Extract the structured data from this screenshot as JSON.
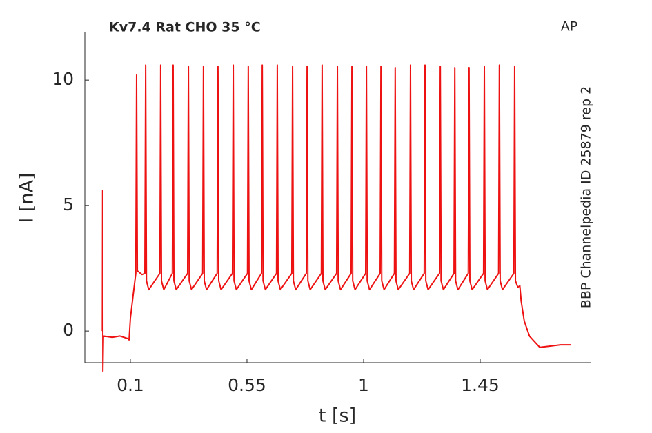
{
  "chart_data": {
    "type": "line",
    "title": "Kv7.4  Rat  CHO  35 °C",
    "annotation": "AP",
    "side_note": "BBP Channelpedia ID 25879 rep 2",
    "xlabel": "t [s]",
    "ylabel": "I [nA]",
    "xlim": [
      -0.0756,
      1.876
    ],
    "ylim": [
      -1.26,
      11.9
    ],
    "xticks": [
      0.1,
      0.55,
      1,
      1.45
    ],
    "yticks": [
      0,
      5,
      10
    ],
    "series": [
      {
        "color": "#ee1111",
        "x": [
          -0.008,
          -0.007,
          -0.006,
          -0.004,
          0.03,
          0.06,
          0.09,
          0.095,
          0.1,
          0.115,
          0.121,
          0.124,
          0.127,
          0.145,
          0.156,
          0.159,
          0.162,
          0.171,
          0.214,
          0.217,
          0.22,
          0.229,
          0.262,
          0.265,
          0.268,
          0.277,
          0.321,
          0.324,
          0.327,
          0.336,
          0.379,
          0.382,
          0.385,
          0.394,
          0.435,
          0.438,
          0.441,
          0.45,
          0.494,
          0.497,
          0.5,
          0.509,
          0.552,
          0.555,
          0.558,
          0.567,
          0.606,
          0.609,
          0.612,
          0.621,
          0.664,
          0.667,
          0.67,
          0.679,
          0.723,
          0.726,
          0.729,
          0.738,
          0.779,
          0.782,
          0.785,
          0.794,
          0.837,
          0.84,
          0.843,
          0.852,
          0.896,
          0.899,
          0.902,
          0.911,
          0.952,
          0.955,
          0.958,
          0.967,
          1.008,
          1.011,
          1.014,
          1.023,
          1.064,
          1.067,
          1.07,
          1.079,
          1.119,
          1.122,
          1.125,
          1.134,
          1.178,
          1.181,
          1.184,
          1.193,
          1.234,
          1.237,
          1.24,
          1.249,
          1.293,
          1.296,
          1.299,
          1.308,
          1.349,
          1.352,
          1.355,
          1.364,
          1.404,
          1.407,
          1.41,
          1.419,
          1.463,
          1.466,
          1.469,
          1.478,
          1.521,
          1.524,
          1.527,
          1.536,
          1.58,
          1.583,
          1.586,
          1.595,
          1.603,
          1.608,
          1.62,
          1.64,
          1.68,
          1.72,
          1.76,
          1.8
        ],
        "values": [
          0,
          5.6,
          -1.6,
          -0.2,
          -0.25,
          -0.2,
          -0.3,
          -0.35,
          0.5,
          1.8,
          2.3,
          10.2,
          2.4,
          2.25,
          2.3,
          10.6,
          2.0,
          1.65,
          2.3,
          10.6,
          2.0,
          1.65,
          2.3,
          10.6,
          2.0,
          1.65,
          2.3,
          10.55,
          2.0,
          1.65,
          2.3,
          10.55,
          2.0,
          1.65,
          2.3,
          10.55,
          2.0,
          1.65,
          2.3,
          10.6,
          2.0,
          1.65,
          2.3,
          10.55,
          2.0,
          1.65,
          2.3,
          10.6,
          2.0,
          1.65,
          2.3,
          10.6,
          2.0,
          1.65,
          2.3,
          10.55,
          2.0,
          1.65,
          2.3,
          10.55,
          2.0,
          1.65,
          2.3,
          10.6,
          2.0,
          1.65,
          2.3,
          10.55,
          2.0,
          1.65,
          2.3,
          10.55,
          2.0,
          1.65,
          2.3,
          10.55,
          2.0,
          1.65,
          2.3,
          10.55,
          2.0,
          1.65,
          2.3,
          10.5,
          2.0,
          1.65,
          2.3,
          10.6,
          2.0,
          1.65,
          2.3,
          10.6,
          2.0,
          1.65,
          2.3,
          10.55,
          2.0,
          1.65,
          2.3,
          10.5,
          2.0,
          1.65,
          2.3,
          10.5,
          2.0,
          1.65,
          2.3,
          10.55,
          2.0,
          1.65,
          2.3,
          10.6,
          2.0,
          1.65,
          2.3,
          10.55,
          2.0,
          1.75,
          1.8,
          1.2,
          0.4,
          -0.2,
          -0.65,
          -0.6,
          -0.55,
          -0.55
        ]
      }
    ]
  }
}
